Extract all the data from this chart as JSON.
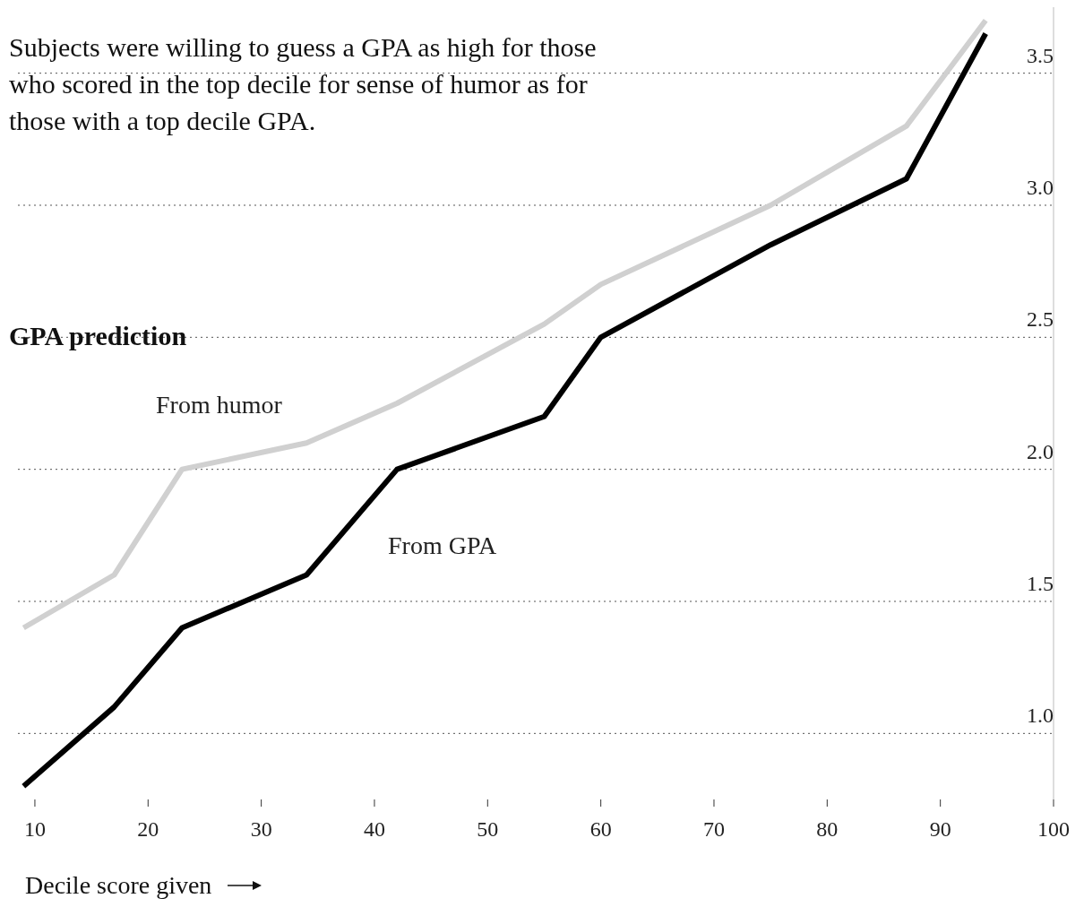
{
  "chart_data": {
    "type": "line",
    "subtitle": "Subjects were willing to guess a GPA as high for those who scored in the top decile for sense of humor as for those with a top decile GPA.",
    "xlabel": "Decile score given",
    "ylabel": "GPA prediction",
    "series": [
      {
        "name": "From humor",
        "color": "#d0d0d0",
        "x": [
          9,
          17,
          23,
          34,
          42,
          55,
          60,
          75,
          87,
          94
        ],
        "values": [
          1.4,
          1.6,
          2.0,
          2.1,
          2.25,
          2.55,
          2.7,
          3.0,
          3.3,
          3.7
        ]
      },
      {
        "name": "From GPA",
        "color": "#000000",
        "x": [
          9,
          17,
          23,
          34,
          42,
          55,
          60,
          75,
          87,
          94
        ],
        "values": [
          0.8,
          1.1,
          1.4,
          1.6,
          2.0,
          2.2,
          2.5,
          2.85,
          3.1,
          3.65
        ]
      }
    ],
    "xlim": [
      8.5,
      100
    ],
    "xticks": [
      10,
      20,
      30,
      40,
      50,
      60,
      70,
      80,
      90,
      100
    ],
    "ylim": [
      0.75,
      3.75
    ],
    "yticks": [
      {
        "value": 1,
        "label": "1.0"
      },
      {
        "value": 1.5,
        "label": "1.5"
      },
      {
        "value": 2,
        "label": "2.0"
      },
      {
        "value": 2.5,
        "label": "2.5"
      },
      {
        "value": 3,
        "label": "3.0"
      },
      {
        "value": 3.5,
        "label": "3.5"
      }
    ],
    "grid": "y",
    "marker": "none",
    "line_style": "solid"
  }
}
